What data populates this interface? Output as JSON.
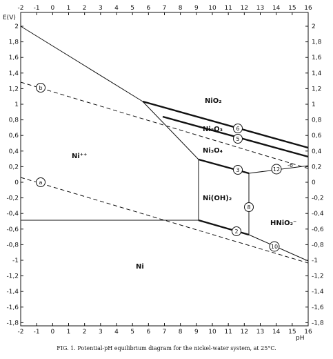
{
  "axes": {
    "y_label": "E(V)",
    "x_label": "pH",
    "x_ticks": [
      "-2",
      "-1",
      "0",
      "1",
      "2",
      "3",
      "4",
      "5",
      "6",
      "7",
      "8",
      "9",
      "10",
      "11",
      "12",
      "13",
      "14",
      "15",
      "16"
    ],
    "y_ticks": [
      "2",
      "1,8",
      "1,6",
      "1,4",
      "1,2",
      "1",
      "0,8",
      "0,6",
      "0,4",
      "0,2",
      "0",
      "-0,2",
      "-0,4",
      "-0,6",
      "-0,8",
      "-1",
      "-1,2",
      "-1,4",
      "-1,6",
      "-1,8"
    ]
  },
  "regions": {
    "ni_plus": "Ni⁺⁺",
    "nio2": "NiO₂",
    "ni2o3": "Ni₂O₃",
    "ni3o4": "Ni₃O₄",
    "nioh2": "Ni(OH)₂",
    "hnio2": "HNiO₂⁻",
    "ni": "Ni"
  },
  "line_labels": {
    "a": "a",
    "b": "b",
    "n2": "2",
    "n3": "3",
    "n5": "5",
    "n6": "6",
    "n8": "8",
    "n10": "10",
    "n12": "12",
    "minus6": "-6"
  },
  "caption": "FIG. 1. Potential-pH equilibrium diagram for the nickel-water system, at 25°C."
}
